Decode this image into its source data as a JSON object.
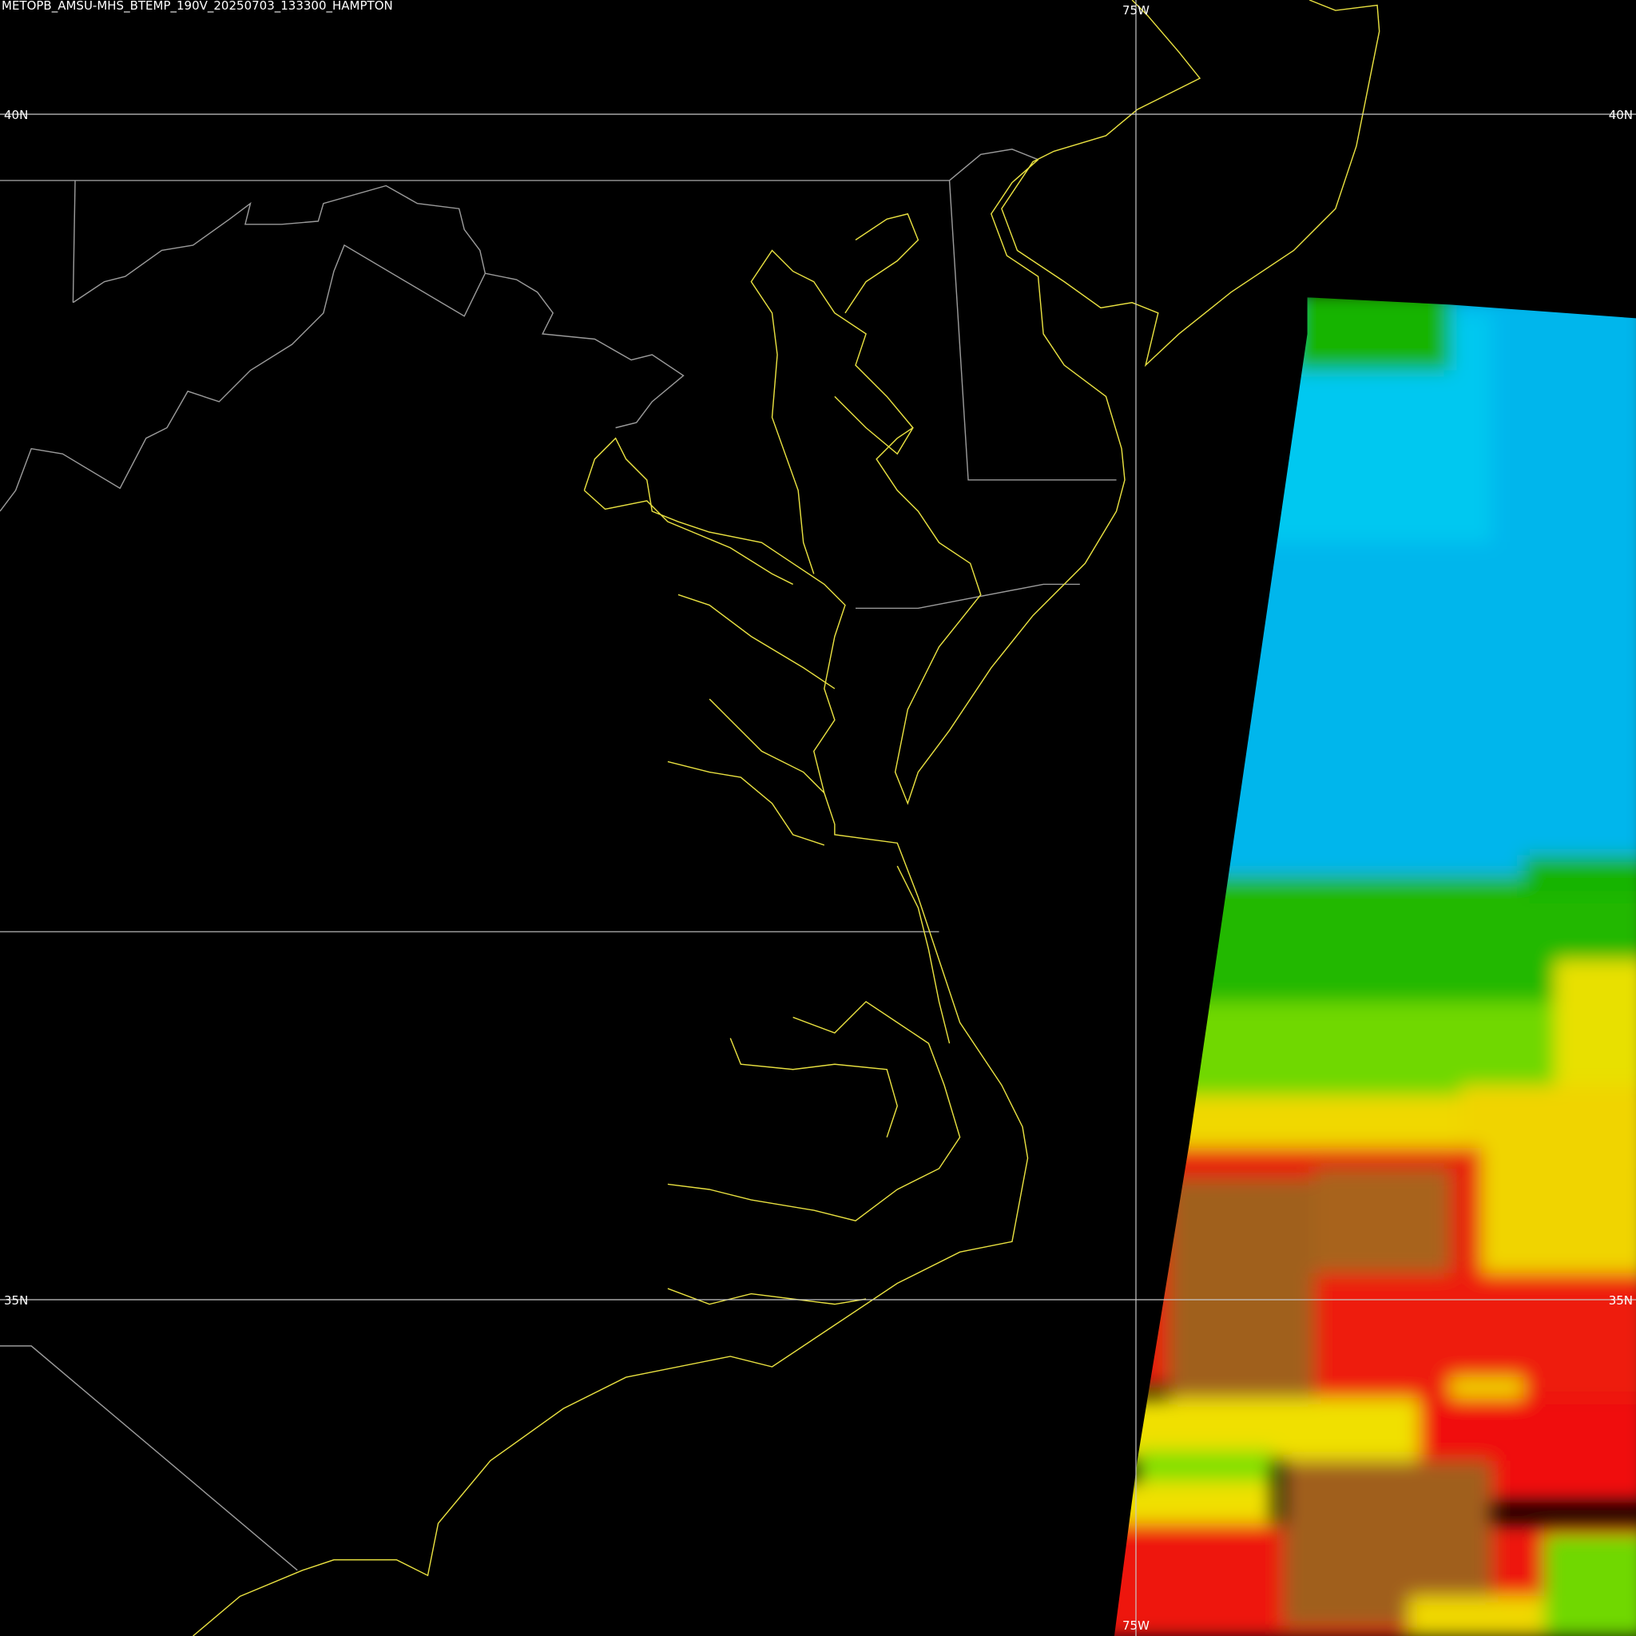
{
  "header": {
    "title": "METOPB_AMSU-MHS_BTEMP_190V_20250703_133300_HAMPTON"
  },
  "latitude_labels": [
    {
      "left": "40N",
      "right": "40N"
    },
    {
      "left": "35N",
      "right": "35N"
    }
  ],
  "longitude_labels": {
    "top": "75W",
    "bottom": "75W"
  }
}
